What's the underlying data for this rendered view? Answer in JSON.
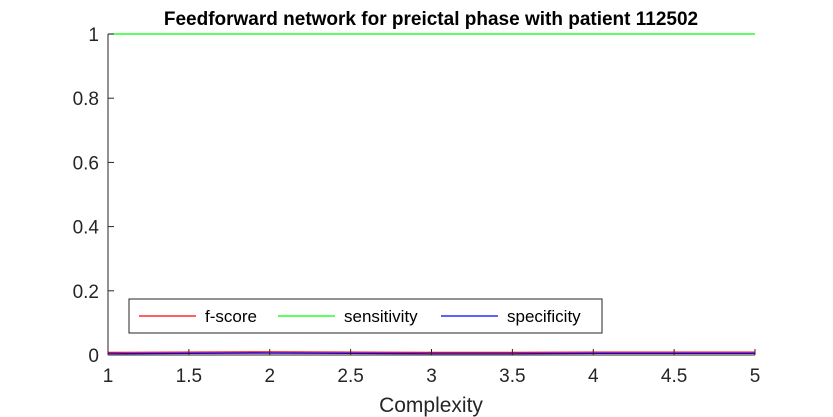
{
  "chart_data": {
    "type": "line",
    "title": "Feedforward network for preictal phase with patient 112502",
    "xlabel": "Complexity",
    "ylabel": "",
    "xlim": [
      1,
      5
    ],
    "ylim": [
      0,
      1
    ],
    "xticks": [
      1,
      1.5,
      2,
      2.5,
      3,
      3.5,
      4,
      4.5,
      5
    ],
    "xtick_labels": [
      "1",
      "1.5",
      "2",
      "2.5",
      "3",
      "3.5",
      "4",
      "4.5",
      "5"
    ],
    "yticks": [
      0,
      0.2,
      0.4,
      0.6,
      0.8,
      1
    ],
    "ytick_labels": [
      "0",
      "0.2",
      "0.4",
      "0.6",
      "0.8",
      "1"
    ],
    "grid": false,
    "legend_position": "bottom-left",
    "legend_orientation": "horizontal",
    "x": [
      1,
      1.5,
      2,
      2.5,
      3,
      3.5,
      4,
      4.5,
      5
    ],
    "series": [
      {
        "name": "f-score",
        "color": "#ff0000",
        "values": [
          0.008,
          0.009,
          0.01,
          0.009,
          0.008,
          0.008,
          0.009,
          0.009,
          0.009
        ]
      },
      {
        "name": "sensitivity",
        "color": "#00ff00",
        "values": [
          1,
          1,
          1,
          1,
          1,
          1,
          1,
          1,
          1
        ]
      },
      {
        "name": "specificity",
        "color": "#0000ff",
        "values": [
          0.004,
          0.005,
          0.006,
          0.005,
          0.004,
          0.004,
          0.005,
          0.005,
          0.005
        ]
      }
    ]
  }
}
